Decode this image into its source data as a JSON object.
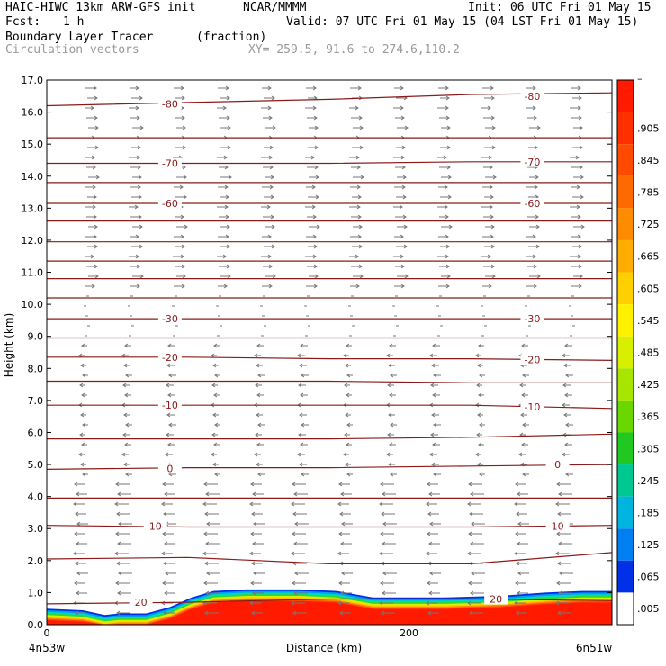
{
  "header": {
    "model": "HAIC-HIWC 13km ARW-GFS init",
    "org": "NCAR/MMMM",
    "init": "Init: 06 UTC Fri 01 May 15",
    "fcst_label": "Fcst:",
    "fcst_value": "1 h",
    "valid": "Valid: 07 UTC Fri 01 May 15 (04 LST Fri 01 May 15)",
    "field1_name": "Boundary Layer Tracer",
    "field1_units": "(fraction)",
    "field2_name": "Circulation vectors",
    "xy_range": "XY= 259.5, 91.6 to 274.6,110.2"
  },
  "colors": {
    "contour": "#8b1a1a",
    "vector": "#777777",
    "tracer_full": "#ff1a00"
  },
  "chart_data": {
    "type": "heatmap",
    "title": "Boundary Layer Tracer",
    "ylabel": "Height (km)",
    "xlabel": "Distance (km)",
    "xlim": [
      0,
      312
    ],
    "ylim": [
      0,
      17
    ],
    "y_ticks": [
      "0.0",
      "1.0",
      "2.0",
      "3.0",
      "4.0",
      "5.0",
      "6.0",
      "7.0",
      "8.0",
      "9.0",
      "10.0",
      "11.0",
      "12.0",
      "13.0",
      "14.0",
      "15.0",
      "16.0",
      "17.0"
    ],
    "x_ticks": [
      {
        "value": 0,
        "label": "0"
      },
      {
        "value": 200,
        "label": "200"
      }
    ],
    "x_endpoints": {
      "left": "4n53w",
      "right": "6n51w"
    },
    "colorbar": {
      "ticks": [
        "–",
        ".905",
        ".845",
        ".785",
        ".725",
        ".665",
        ".605",
        ".545",
        ".485",
        ".425",
        ".365",
        ".305",
        ".245",
        ".185",
        ".125",
        ".065",
        ".005"
      ],
      "colors": [
        "#ff1a00",
        "#ff2f00",
        "#ff4a00",
        "#ff6a00",
        "#ff8c00",
        "#ffad00",
        "#ffd000",
        "#fff000",
        "#d8f000",
        "#a8e600",
        "#6ad800",
        "#20c820",
        "#00c890",
        "#00b4e0",
        "#0080f0",
        "#0030e8",
        "#ffffff"
      ]
    },
    "contours": [
      {
        "label": "-80",
        "y": [
          16.2,
          16.3,
          16.4,
          16.55,
          16.6
        ]
      },
      {
        "label": "",
        "y": [
          15.2,
          15.2,
          15.2,
          15.2,
          15.2
        ]
      },
      {
        "label": "-70",
        "y": [
          14.4,
          14.4,
          14.4,
          14.45,
          14.45
        ]
      },
      {
        "label": "",
        "y": [
          13.8,
          13.8,
          13.8,
          13.8,
          13.8
        ]
      },
      {
        "label": "-60",
        "y": [
          13.15,
          13.15,
          13.15,
          13.15,
          13.15
        ]
      },
      {
        "label": "",
        "y": [
          12.6,
          12.6,
          12.6,
          12.6,
          12.6
        ]
      },
      {
        "label": "",
        "y": [
          11.95,
          11.95,
          11.95,
          11.95,
          11.95
        ]
      },
      {
        "label": "",
        "y": [
          11.35,
          11.35,
          11.35,
          11.35,
          11.35
        ]
      },
      {
        "label": "",
        "y": [
          10.8,
          10.8,
          10.8,
          10.8,
          10.8
        ]
      },
      {
        "label": "",
        "y": [
          10.2,
          10.2,
          10.2,
          10.2,
          10.2
        ]
      },
      {
        "label": "-30",
        "y": [
          9.55,
          9.55,
          9.55,
          9.55,
          9.55
        ]
      },
      {
        "label": "",
        "y": [
          8.95,
          8.95,
          8.95,
          8.95,
          8.95
        ]
      },
      {
        "label": "-20",
        "y": [
          8.35,
          8.35,
          8.3,
          8.3,
          8.25
        ]
      },
      {
        "label": "",
        "y": [
          7.6,
          7.6,
          7.6,
          7.55,
          7.55
        ]
      },
      {
        "label": "-10",
        "y": [
          6.85,
          6.85,
          6.85,
          6.85,
          6.75
        ]
      },
      {
        "label": "",
        "y": [
          5.8,
          5.8,
          5.8,
          5.85,
          5.95
        ]
      },
      {
        "label": "0",
        "y": [
          4.85,
          4.9,
          4.9,
          4.95,
          5.0
        ]
      },
      {
        "label": "",
        "y": [
          3.95,
          3.95,
          3.95,
          3.95,
          3.95
        ]
      },
      {
        "label": "10",
        "y": [
          3.1,
          3.05,
          3.05,
          3.05,
          3.1
        ]
      },
      {
        "label": "",
        "y": [
          2.05,
          2.1,
          1.9,
          1.9,
          2.25
        ]
      },
      {
        "label": "20",
        "y": [
          0.65,
          0.7,
          0.8,
          0.8,
          0.75
        ]
      }
    ],
    "contour_x": [
      0,
      78,
      156,
      234,
      312
    ],
    "contour_labels": [
      {
        "text": "-80",
        "x": 68,
        "y": 16.25
      },
      {
        "text": "-80",
        "x": 268,
        "y": 16.5
      },
      {
        "text": "-70",
        "x": 68,
        "y": 14.4
      },
      {
        "text": "-70",
        "x": 268,
        "y": 14.45
      },
      {
        "text": "-60",
        "x": 68,
        "y": 13.15
      },
      {
        "text": "-60",
        "x": 268,
        "y": 13.15
      },
      {
        "text": "-30",
        "x": 68,
        "y": 9.55
      },
      {
        "text": "-30",
        "x": 268,
        "y": 9.55
      },
      {
        "text": "-20",
        "x": 68,
        "y": 8.35
      },
      {
        "text": "-20",
        "x": 268,
        "y": 8.28
      },
      {
        "text": "-10",
        "x": 68,
        "y": 6.85
      },
      {
        "text": "-10",
        "x": 268,
        "y": 6.8
      },
      {
        "text": "0",
        "x": 68,
        "y": 4.88
      },
      {
        "text": "0",
        "x": 282,
        "y": 5.0
      },
      {
        "text": "10",
        "x": 60,
        "y": 3.07
      },
      {
        "text": "10",
        "x": 282,
        "y": 3.08
      },
      {
        "text": "20",
        "x": 52,
        "y": 0.7
      },
      {
        "text": "20",
        "x": 248,
        "y": 0.8
      }
    ],
    "tracer_top_km": [
      [
        0,
        0.5
      ],
      [
        20,
        0.45
      ],
      [
        32,
        0.3
      ],
      [
        40,
        0.35
      ],
      [
        55,
        0.35
      ],
      [
        68,
        0.55
      ],
      [
        80,
        0.85
      ],
      [
        92,
        1.05
      ],
      [
        110,
        1.1
      ],
      [
        140,
        1.1
      ],
      [
        160,
        1.05
      ],
      [
        170,
        0.95
      ],
      [
        180,
        0.85
      ],
      [
        220,
        0.85
      ],
      [
        250,
        0.9
      ],
      [
        275,
        1.0
      ],
      [
        295,
        1.05
      ],
      [
        312,
        1.05
      ]
    ]
  }
}
